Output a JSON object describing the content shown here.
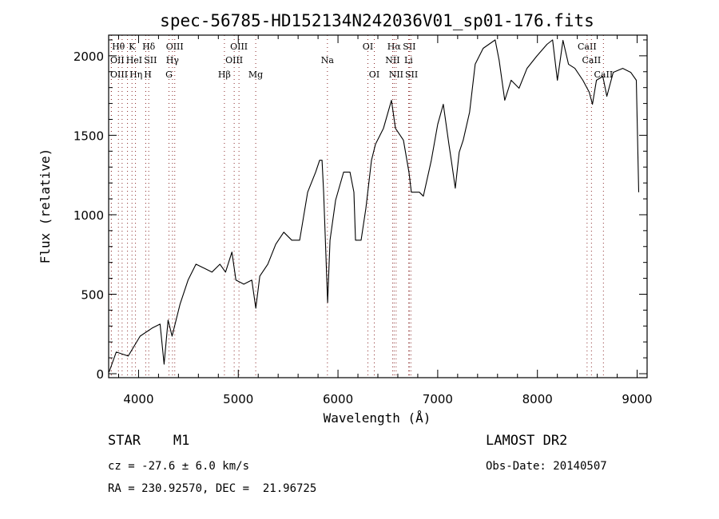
{
  "chart_data": {
    "type": "line",
    "title": "spec-56785-HD152134N242036V01_sp01-176.fits",
    "xlabel": "Wavelength (Å)",
    "ylabel": "Flux (relative)",
    "xlim": [
      3700,
      9100
    ],
    "ylim": [
      -25,
      2130
    ],
    "x_ticks": [
      4000,
      5000,
      6000,
      7000,
      8000,
      9000
    ],
    "y_ticks": [
      0,
      500,
      1000,
      1500,
      2000
    ],
    "grid": false,
    "series": [
      {
        "name": "spectrum",
        "color": "#000000",
        "x": [
          3704,
          3776,
          3896,
          4016,
          4136,
          4216,
          4256,
          4296,
          4336,
          4416,
          4496,
          4576,
          4656,
          4736,
          4816,
          4872,
          4936,
          4976,
          5056,
          5136,
          5176,
          5216,
          5296,
          5376,
          5456,
          5536,
          5616,
          5696,
          5776,
          5816,
          5840,
          5856,
          5896,
          5920,
          5976,
          6056,
          6120,
          6160,
          6176,
          6232,
          6280,
          6336,
          6376,
          6456,
          6536,
          6576,
          6656,
          6712,
          6736,
          6816,
          6856,
          6936,
          7000,
          7056,
          7112,
          7136,
          7176,
          7216,
          7256,
          7320,
          7376,
          7456,
          7576,
          7616,
          7672,
          7736,
          7816,
          7896,
          7992,
          8096,
          8152,
          8200,
          8256,
          8312,
          8376,
          8456,
          8520,
          8552,
          8592,
          8656,
          8696,
          8760,
          8856,
          8936,
          8992,
          9016
        ],
        "y": [
          10,
          136,
          111,
          236,
          287,
          312,
          60,
          337,
          236,
          438,
          589,
          689,
          664,
          639,
          689,
          639,
          765,
          589,
          563,
          589,
          412,
          614,
          689,
          815,
          890,
          840,
          840,
          1142,
          1268,
          1343,
          1343,
          1142,
          448,
          840,
          1092,
          1268,
          1268,
          1142,
          840,
          840,
          1041,
          1343,
          1444,
          1544,
          1720,
          1544,
          1469,
          1268,
          1142,
          1142,
          1117,
          1343,
          1569,
          1695,
          1444,
          1343,
          1167,
          1393,
          1469,
          1645,
          1947,
          2047,
          2100,
          1972,
          1720,
          1846,
          1796,
          1921,
          1997,
          2072,
          2100,
          1846,
          2097,
          1947,
          1921,
          1846,
          1771,
          1695,
          1846,
          1871,
          1745,
          1896,
          1921,
          1896,
          1846,
          1142
        ]
      }
    ],
    "line_marker_color": "#8b2a2a",
    "line_markers": [
      {
        "label": "Hθ",
        "wavelength": 3798,
        "row": 0
      },
      {
        "label": "K",
        "wavelength": 3934,
        "row": 0
      },
      {
        "label": "Hδ",
        "wavelength": 4102,
        "row": 0
      },
      {
        "label": "OIII",
        "wavelength": 4363,
        "row": 0
      },
      {
        "label": "OIII",
        "wavelength": 5007,
        "row": 0
      },
      {
        "label": "OI",
        "wavelength": 6300,
        "row": 0
      },
      {
        "label": "Hα",
        "wavelength": 6563,
        "row": 0
      },
      {
        "label": "SII",
        "wavelength": 6716,
        "row": 0
      },
      {
        "label": "CaII",
        "wavelength": 8498,
        "row": 0
      },
      {
        "label": "OII",
        "wavelength": 3727,
        "row": 1
      },
      {
        "label": "HeI",
        "wavelength": 3889,
        "row": 1
      },
      {
        "label": "SII",
        "wavelength": 4072,
        "row": 1
      },
      {
        "label": "Hγ",
        "wavelength": 4340,
        "row": 1
      },
      {
        "label": "OIII",
        "wavelength": 4959,
        "row": 1
      },
      {
        "label": "Na",
        "wavelength": 5894,
        "row": 1
      },
      {
        "label": "NII",
        "wavelength": 6548,
        "row": 1
      },
      {
        "label": "Li",
        "wavelength": 6708,
        "row": 1
      },
      {
        "label": "CaII",
        "wavelength": 8542,
        "row": 1
      },
      {
        "label": "OIII",
        "wavelength": 3727,
        "row": 2
      },
      {
        "label": "Hη",
        "wavelength": 3835,
        "row": 2
      },
      {
        "label": "H",
        "wavelength": 3969,
        "row": 2
      },
      {
        "label": "G",
        "wavelength": 4305,
        "row": 2
      },
      {
        "label": "Hβ",
        "wavelength": 4861,
        "row": 2
      },
      {
        "label": "Mg",
        "wavelength": 5175,
        "row": 2
      },
      {
        "label": "OI",
        "wavelength": 6364,
        "row": 2
      },
      {
        "label": "NII",
        "wavelength": 6583,
        "row": 2
      },
      {
        "label": "SII",
        "wavelength": 6731,
        "row": 2
      },
      {
        "label": "CaII",
        "wavelength": 8662,
        "row": 2
      }
    ]
  },
  "info": {
    "class": "STAR    M1",
    "survey": "LAMOST DR2",
    "cz": "cz = -27.6 ± 6.0 km/s",
    "obs_date": "Obs-Date: 20140507",
    "coords": "RA = 230.92570, DEC =  21.96725"
  }
}
